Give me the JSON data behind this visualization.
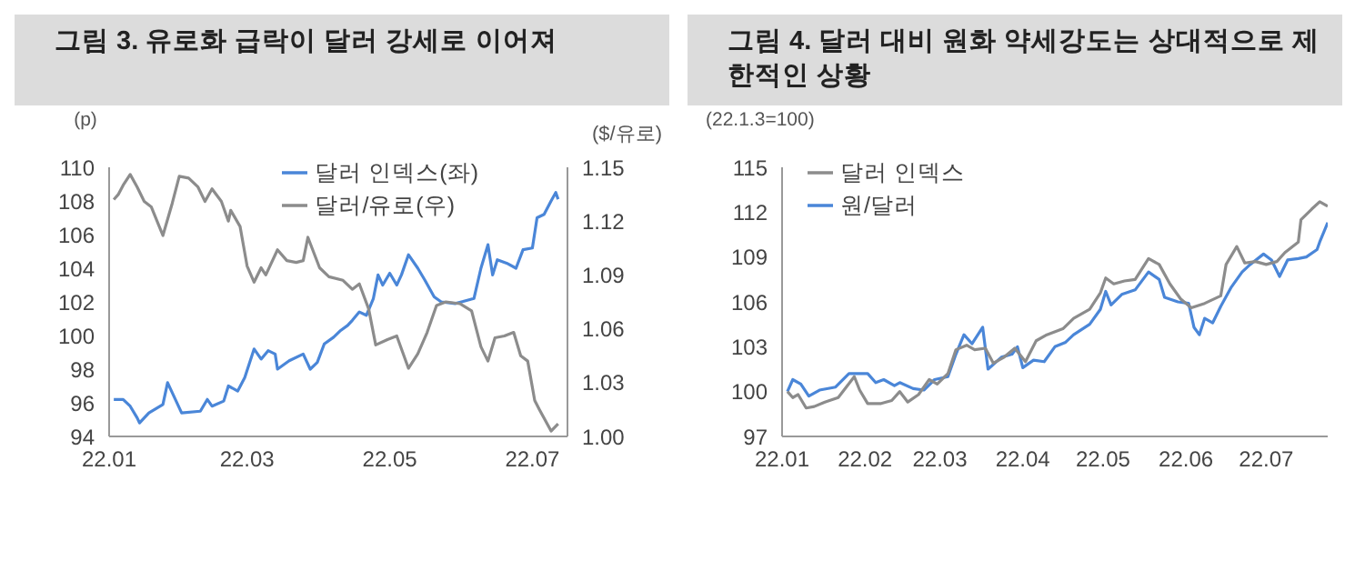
{
  "chart_data": [
    {
      "type": "line",
      "title": "그림 3. 유로화 급락이 달러 강세로 이어져",
      "ylabel": "(p)",
      "y2label": "($/유로)",
      "legend": "top right",
      "marker": "none",
      "line_style": "solid",
      "xlim": [
        "--01-01",
        "--07-16"
      ],
      "xticks": [
        {
          "value": "--01-01",
          "label": "22.01"
        },
        {
          "value": "--03-01",
          "label": "22.03"
        },
        {
          "value": "--05-01",
          "label": "22.05"
        },
        {
          "value": "--07-01",
          "label": "22.07"
        }
      ],
      "ylim": [
        94,
        110
      ],
      "yticks": [
        94,
        96,
        98,
        100,
        102,
        104,
        106,
        108,
        110
      ],
      "y2lim": [
        1,
        1.15
      ],
      "y2ticks": [
        {
          "value": 1,
          "label": "1.00"
        },
        1.03,
        1.06,
        1.09,
        1.12,
        1.15
      ],
      "series": [
        {
          "name": "달러 인덱스(좌)",
          "color": "#4a86d8",
          "x": [
            "--01-03",
            "--01-07",
            "--01-10",
            "--01-13",
            "--01-14",
            "--01-18",
            "--01-24",
            "--01-26",
            "--02-01",
            "--02-09",
            "--02-12",
            "--02-14",
            "--02-19",
            "--02-21",
            "--02-25",
            "--02-28",
            "--03-04",
            "--03-07",
            "--03-10",
            "--03-13",
            "--03-14",
            "--03-19",
            "--03-25",
            "--03-28",
            "--03-31",
            "--04-03",
            "--04-07",
            "--04-10",
            "--04-13",
            "--04-15",
            "--04-18",
            "--04-21",
            "--04-24",
            "--04-26",
            "--04-28",
            "--05-01",
            "--05-04",
            "--05-06",
            "--05-09",
            "--05-13",
            "--05-16",
            "--05-20",
            "--05-23",
            "--05-29",
            "--06-06",
            "--06-09",
            "--06-12",
            "--06-14",
            "--06-16",
            "--06-20",
            "--06-24",
            "--06-27",
            "--07-01",
            "--07-03",
            "--07-06",
            "--07-09",
            "--07-11",
            "--07-12"
          ],
          "values": [
            96.2,
            96.2,
            95.8,
            95.1,
            94.8,
            95.4,
            95.9,
            97.2,
            95.4,
            95.5,
            96.2,
            95.8,
            96.1,
            97.0,
            96.7,
            97.5,
            99.2,
            98.6,
            99.1,
            98.9,
            98.0,
            98.5,
            98.9,
            98.0,
            98.4,
            99.5,
            99.9,
            100.3,
            100.6,
            100.9,
            101.4,
            101.2,
            102.2,
            103.6,
            103.0,
            103.7,
            103.0,
            103.6,
            104.8,
            104.0,
            103.3,
            102.3,
            102.0,
            101.9,
            102.2,
            104.0,
            105.4,
            103.6,
            104.5,
            104.3,
            104.0,
            105.1,
            105.2,
            107.0,
            107.2,
            108.0,
            108.5,
            108.1
          ]
        },
        {
          "name": "달러/유로(우)",
          "color": "#8c8c8c",
          "axis": "y2",
          "x": [
            "--01-03",
            "--01-05",
            "--01-07",
            "--01-10",
            "--01-13",
            "--01-16",
            "--01-19",
            "--01-24",
            "--01-28",
            "--01-31",
            "--02-04",
            "--02-08",
            "--02-11",
            "--02-14",
            "--02-18",
            "--02-21",
            "--02-22",
            "--02-26",
            "--03-01",
            "--03-04",
            "--03-07",
            "--03-09",
            "--03-14",
            "--03-18",
            "--03-22",
            "--03-25",
            "--03-27",
            "--04-01",
            "--04-05",
            "--04-11",
            "--04-15",
            "--04-18",
            "--04-22",
            "--04-25",
            "--04-30",
            "--05-04",
            "--05-09",
            "--05-13",
            "--05-17",
            "--05-21",
            "--05-25",
            "--05-31",
            "--06-05",
            "--06-09",
            "--06-12",
            "--06-15",
            "--06-19",
            "--06-23",
            "--06-26",
            "--06-29",
            "--07-02",
            "--07-04",
            "--07-09",
            "--07-12"
          ],
          "values": [
            1.132,
            1.135,
            1.14,
            1.146,
            1.139,
            1.131,
            1.128,
            1.112,
            1.13,
            1.145,
            1.144,
            1.139,
            1.131,
            1.138,
            1.131,
            1.12,
            1.126,
            1.117,
            1.095,
            1.086,
            1.094,
            1.09,
            1.104,
            1.098,
            1.097,
            1.098,
            1.111,
            1.094,
            1.089,
            1.087,
            1.082,
            1.085,
            1.071,
            1.051,
            1.054,
            1.056,
            1.038,
            1.046,
            1.058,
            1.073,
            1.075,
            1.074,
            1.07,
            1.05,
            1.042,
            1.055,
            1.056,
            1.058,
            1.045,
            1.042,
            1.02,
            1.015,
            1.003,
            1.007
          ]
        }
      ]
    },
    {
      "type": "line",
      "title": "그림 4. 달러 대비 원화 약세강도는 상대적으로 제한적인 상황",
      "ylabel": "(22.1.3=100)",
      "legend": "top left",
      "marker": "none",
      "line_style": "solid",
      "xlim": [
        "--01-01",
        "--07-24"
      ],
      "xticks": [
        {
          "value": "--01-01",
          "label": "22.01"
        },
        {
          "value": "--02-01",
          "label": "22.02"
        },
        {
          "value": "--03-01",
          "label": "22.03"
        },
        {
          "value": "--04-01",
          "label": "22.04"
        },
        {
          "value": "--05-01",
          "label": "22.05"
        },
        {
          "value": "--06-01",
          "label": "22.06"
        },
        {
          "value": "--07-01",
          "label": "22.07"
        }
      ],
      "ylim": [
        97,
        115
      ],
      "yticks": [
        97,
        100,
        103,
        106,
        109,
        112,
        115
      ],
      "series": [
        {
          "name": "원/달러",
          "color": "#4a86d8",
          "x": [
            "--01-03",
            "--01-05",
            "--01-08",
            "--01-11",
            "--01-15",
            "--01-21",
            "--01-26",
            "--02-02",
            "--02-05",
            "--02-08",
            "--02-12",
            "--02-14",
            "--02-19",
            "--02-23",
            "--02-27",
            "--03-04",
            "--03-07",
            "--03-10",
            "--03-13",
            "--03-17",
            "--03-19",
            "--03-24",
            "--03-28",
            "--03-30",
            "--04-01",
            "--04-05",
            "--04-09",
            "--04-13",
            "--04-17",
            "--04-20",
            "--04-26",
            "--04-30",
            "--05-02",
            "--05-04",
            "--05-08",
            "--05-13",
            "--05-18",
            "--05-22",
            "--05-24",
            "--05-29",
            "--06-02",
            "--06-04",
            "--06-06",
            "--06-08",
            "--06-11",
            "--06-14",
            "--06-18",
            "--06-22",
            "--06-25",
            "--06-30",
            "--07-03",
            "--07-06",
            "--07-09",
            "--07-13",
            "--07-16",
            "--07-20",
            "--07-21",
            "--07-24"
          ],
          "values": [
            100.0,
            100.8,
            100.5,
            99.7,
            100.1,
            100.3,
            101.2,
            101.2,
            100.6,
            100.8,
            100.4,
            100.6,
            100.2,
            100.1,
            100.8,
            101.0,
            102.5,
            103.8,
            103.2,
            104.3,
            101.5,
            102.3,
            102.5,
            103.0,
            101.6,
            102.1,
            102.0,
            103.0,
            103.3,
            103.8,
            104.5,
            105.5,
            106.7,
            105.8,
            106.5,
            106.8,
            108.0,
            107.5,
            106.3,
            106.0,
            105.9,
            104.3,
            103.8,
            104.9,
            104.6,
            105.7,
            107.0,
            108.0,
            108.5,
            109.2,
            108.8,
            107.7,
            108.8,
            108.9,
            109.0,
            109.5,
            110.0,
            111.3
          ]
        },
        {
          "name": "달러 인덱스",
          "color": "#8c8c8c",
          "x": [
            "--01-03",
            "--01-05",
            "--01-07",
            "--01-10",
            "--01-13",
            "--01-17",
            "--01-22",
            "--01-28",
            "--01-30",
            "--02-02",
            "--02-07",
            "--02-11",
            "--02-14",
            "--02-17",
            "--02-21",
            "--02-25",
            "--02-28",
            "--03-04",
            "--03-07",
            "--03-11",
            "--03-14",
            "--03-18",
            "--03-21",
            "--03-25",
            "--03-29",
            "--04-02",
            "--04-06",
            "--04-10",
            "--04-16",
            "--04-20",
            "--04-26",
            "--04-30",
            "--05-02",
            "--05-05",
            "--05-09",
            "--05-13",
            "--05-18",
            "--05-22",
            "--05-26",
            "--05-30",
            "--06-03",
            "--06-08",
            "--06-14",
            "--06-16",
            "--06-20",
            "--06-23",
            "--06-27",
            "--07-01",
            "--07-05",
            "--07-08",
            "--07-13",
            "--07-14",
            "--07-18",
            "--07-21",
            "--07-24"
          ],
          "values": [
            100.0,
            99.6,
            99.8,
            98.9,
            99.0,
            99.3,
            99.6,
            101.0,
            100.1,
            99.2,
            99.2,
            99.4,
            100.0,
            99.3,
            99.8,
            100.8,
            100.5,
            101.2,
            102.8,
            103.1,
            102.8,
            102.9,
            101.9,
            102.3,
            102.9,
            102.0,
            103.4,
            103.8,
            104.2,
            104.9,
            105.5,
            106.6,
            107.6,
            107.2,
            107.4,
            107.5,
            108.9,
            108.5,
            107.2,
            106.2,
            105.6,
            105.9,
            106.4,
            108.5,
            109.7,
            108.6,
            108.7,
            108.5,
            108.7,
            109.3,
            110.0,
            111.5,
            112.2,
            112.7,
            112.4
          ]
        }
      ]
    }
  ]
}
